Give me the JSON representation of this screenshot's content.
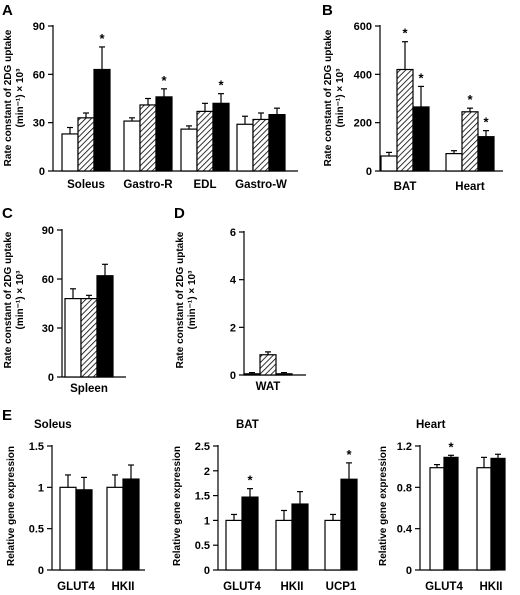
{
  "figure_panels": {
    "A": "A",
    "B": "B",
    "C": "C",
    "D": "D",
    "E": "E"
  },
  "chart_data": [
    {
      "panel": "A",
      "type": "bar",
      "ylabel": [
        "Rate constant of 2DG uptake",
        "(min⁻¹) × 10³"
      ],
      "ylim": [
        0,
        90
      ],
      "yticks": [
        0,
        30,
        60,
        90
      ],
      "categories": [
        "Soleus",
        "Gastro-R",
        "EDL",
        "Gastro-W"
      ],
      "series": [
        {
          "fill": "white",
          "values": [
            23,
            31,
            26,
            29
          ],
          "errors": [
            4,
            2,
            2,
            5
          ]
        },
        {
          "fill": "hatched",
          "values": [
            33,
            41,
            37,
            32
          ],
          "errors": [
            3,
            4,
            5,
            4
          ]
        },
        {
          "fill": "black",
          "values": [
            63,
            46,
            42,
            35
          ],
          "errors": [
            14,
            5,
            6,
            4
          ]
        }
      ],
      "significance": [
        [
          0,
          2
        ],
        [
          1,
          2
        ],
        [
          2,
          2
        ]
      ],
      "star": "*"
    },
    {
      "panel": "B",
      "type": "bar",
      "ylabel": [
        "Rate constant of 2DG uptake",
        "(min⁻¹) × 10³"
      ],
      "ylim": [
        0,
        600
      ],
      "yticks": [
        0,
        200,
        400,
        600
      ],
      "categories": [
        "BAT",
        "Heart"
      ],
      "series": [
        {
          "fill": "white",
          "values": [
            62,
            72
          ],
          "errors": [
            15,
            12
          ]
        },
        {
          "fill": "hatched",
          "values": [
            420,
            245
          ],
          "errors": [
            115,
            15
          ]
        },
        {
          "fill": "black",
          "values": [
            265,
            142
          ],
          "errors": [
            85,
            25
          ]
        }
      ],
      "significance": [
        [
          0,
          1
        ],
        [
          0,
          2
        ],
        [
          1,
          1
        ],
        [
          1,
          2
        ]
      ],
      "star": "*"
    },
    {
      "panel": "C",
      "type": "bar",
      "ylabel": [
        "Rate constant of 2DG uptake",
        "(min⁻¹) × 10³"
      ],
      "ylim": [
        0,
        90
      ],
      "yticks": [
        0,
        30,
        60,
        90
      ],
      "categories": [
        "Spleen"
      ],
      "series": [
        {
          "fill": "white",
          "values": [
            48
          ],
          "errors": [
            6
          ]
        },
        {
          "fill": "hatched",
          "values": [
            48
          ],
          "errors": [
            2
          ]
        },
        {
          "fill": "black",
          "values": [
            62
          ],
          "errors": [
            7
          ]
        }
      ],
      "significance": [],
      "star": "*"
    },
    {
      "panel": "D",
      "type": "bar",
      "ylabel": [
        "Rate constant of 2DG uptake",
        "(min⁻¹) × 10³"
      ],
      "ylim": [
        0,
        6
      ],
      "yticks": [
        0,
        2,
        4,
        6
      ],
      "categories": [
        "WAT"
      ],
      "series": [
        {
          "fill": "white",
          "values": [
            0.05
          ],
          "errors": [
            0.05
          ]
        },
        {
          "fill": "hatched",
          "values": [
            0.85
          ],
          "errors": [
            0.12
          ]
        },
        {
          "fill": "black",
          "values": [
            0.05
          ],
          "errors": [
            0.05
          ]
        }
      ],
      "significance": [],
      "star": "*"
    },
    {
      "panel": "E1",
      "type": "bar",
      "title": "Soleus",
      "ylabel": [
        "Relative gene expression"
      ],
      "ylim": [
        0,
        1.5
      ],
      "yticks": [
        0,
        0.5,
        1,
        1.5
      ],
      "ytick_labels": [
        "0",
        "0.5",
        "1",
        "1.5"
      ],
      "categories": [
        "GLUT4",
        "HKII"
      ],
      "series": [
        {
          "fill": "white",
          "values": [
            1.0,
            1.0
          ],
          "errors": [
            0.15,
            0.15
          ]
        },
        {
          "fill": "black",
          "values": [
            0.97,
            1.1
          ],
          "errors": [
            0.15,
            0.17
          ]
        }
      ],
      "significance": [],
      "star": "*"
    },
    {
      "panel": "E2",
      "type": "bar",
      "title": "BAT",
      "ylabel": [
        "Relative gene expression"
      ],
      "ylim": [
        0,
        2.5
      ],
      "yticks": [
        0,
        0.5,
        1,
        1.5,
        2,
        2.5
      ],
      "ytick_labels": [
        "0",
        "0.5",
        "1",
        "1.5",
        "2",
        "2.5"
      ],
      "categories": [
        "GLUT4",
        "HKII",
        "UCP1"
      ],
      "series": [
        {
          "fill": "white",
          "values": [
            1.0,
            1.0,
            1.0
          ],
          "errors": [
            0.12,
            0.2,
            0.12
          ]
        },
        {
          "fill": "black",
          "values": [
            1.47,
            1.33,
            1.83
          ],
          "errors": [
            0.17,
            0.25,
            0.33
          ]
        }
      ],
      "significance": [
        [
          0,
          1
        ],
        [
          2,
          1
        ]
      ],
      "star": "*"
    },
    {
      "panel": "E3",
      "type": "bar",
      "title": "Heart",
      "ylabel": [
        "Relative gene expression"
      ],
      "ylim": [
        0,
        1.2
      ],
      "yticks": [
        0,
        0.4,
        0.8,
        1.2
      ],
      "ytick_labels": [
        "0",
        "0.4",
        "0.8",
        "1.2"
      ],
      "categories": [
        "GLUT4",
        "HKII"
      ],
      "series": [
        {
          "fill": "white",
          "values": [
            0.99,
            0.99
          ],
          "errors": [
            0.03,
            0.1
          ]
        },
        {
          "fill": "black",
          "values": [
            1.09,
            1.08
          ],
          "errors": [
            0.02,
            0.04
          ]
        }
      ],
      "significance": [
        [
          0,
          1
        ]
      ],
      "star": "*"
    }
  ]
}
